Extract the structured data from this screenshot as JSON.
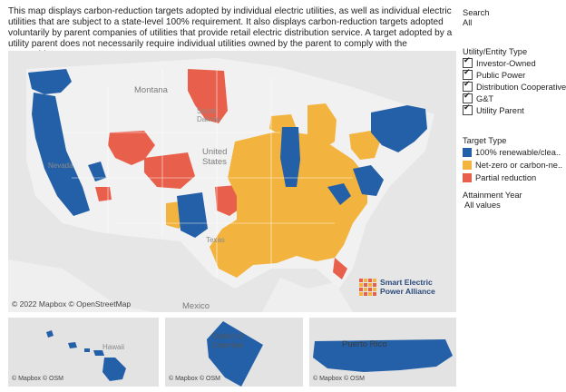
{
  "description": "This map displays carbon-reduction targets adopted by individual electric utilities, as well as individual electric utilities that are subject to a state-level 100% requirement. It also displays carbon-reduction targets adopted voluntarily by parent companies of utilities that provide retail electric distribution service. A target adopted by a utility parent does not necessarily require individual utilities owned by the parent to comply with the overarching target.",
  "sidebar": {
    "search": {
      "label": "Search",
      "value": "All"
    },
    "entity_type": {
      "label": "Utility/Entity Type",
      "items": [
        "Investor-Owned",
        "Public Power",
        "Distribution Cooperative",
        "G&T",
        "Utility Parent"
      ]
    },
    "target_type": {
      "label": "Target Type",
      "items": [
        {
          "label": "100% renewable/clea..",
          "color": "#2460a7"
        },
        {
          "label": "Net-zero or carbon-ne..",
          "color": "#f3b43f"
        },
        {
          "label": "Partial reduction",
          "color": "#e8604c"
        }
      ]
    },
    "attainment_year": {
      "label": "Attainment Year",
      "value": "All values"
    }
  },
  "main_map": {
    "labels": {
      "montana": "Montana",
      "south_dakota": "South\nDakota",
      "nevada": "Nevada",
      "united_states": "United\nStates",
      "texas": "Texas",
      "mexico": "Mexico"
    },
    "attribution": "© 2022 Mapbox © OpenStreetMap"
  },
  "logo": {
    "line1": "Smart Electric",
    "line2": "Power Alliance"
  },
  "insets": [
    {
      "name": "hawaii",
      "label": "Hawaii",
      "attribution": "© Mapbox © OSM"
    },
    {
      "name": "dc",
      "label": "District of\nColumbia",
      "attribution": "© Mapbox © OSM"
    },
    {
      "name": "puerto-rico",
      "label": "Puerto Rico",
      "attribution": "© Mapbox © OSM"
    }
  ],
  "colors": {
    "renewable": "#2460a7",
    "netzero": "#f3b43f",
    "partial": "#e8604c",
    "land": "#e9e9e9"
  }
}
